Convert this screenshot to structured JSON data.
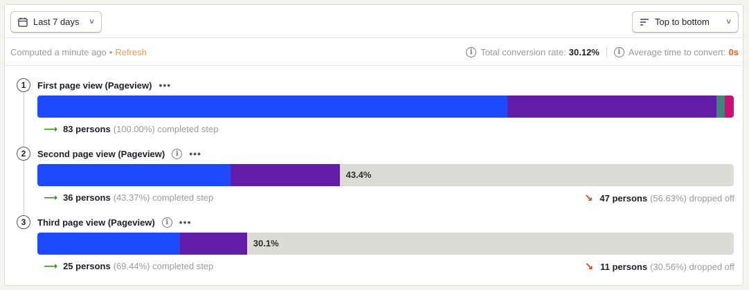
{
  "toolbar": {
    "date_range_label": "Last 7 days",
    "order_label": "Top to bottom"
  },
  "info": {
    "computed_text": "Computed a minute ago",
    "separator": "•",
    "refresh_label": "Refresh",
    "total_conversion_label": "Total conversion rate:",
    "total_conversion_value": "30.12%",
    "avg_time_label": "Average time to convert:",
    "avg_time_value": "0s"
  },
  "colors": {
    "blue": "#1d4aff",
    "purple": "#621da6",
    "teal": "#42827e",
    "magenta": "#ce0e74",
    "track": "#dcdcd6"
  },
  "steps": [
    {
      "number": "1",
      "title": "First page view (Pageview)",
      "conversion_fraction": 1.0,
      "segments": [
        0.675,
        0.3,
        0.012,
        0.013
      ],
      "bar_label": "",
      "completed_count": "83 persons",
      "completed_pct": "(100.00%)",
      "completed_suffix": "completed step"
    },
    {
      "number": "2",
      "title": "Second page view (Pageview)",
      "conversion_fraction": 0.434,
      "segments": [
        0.64,
        0.36
      ],
      "bar_label": "43.4%",
      "completed_count": "36 persons",
      "completed_pct": "(43.37%)",
      "completed_suffix": "completed step",
      "dropped_count": "47 persons",
      "dropped_pct": "(56.63%)",
      "dropped_suffix": "dropped off"
    },
    {
      "number": "3",
      "title": "Third page view (Pageview)",
      "conversion_fraction": 0.301,
      "segments": [
        0.68,
        0.32
      ],
      "bar_label": "30.1%",
      "completed_count": "25 persons",
      "completed_pct": "(69.44%)",
      "completed_suffix": "completed step",
      "dropped_count": "11 persons",
      "dropped_pct": "(30.56%)",
      "dropped_suffix": "dropped off"
    }
  ]
}
